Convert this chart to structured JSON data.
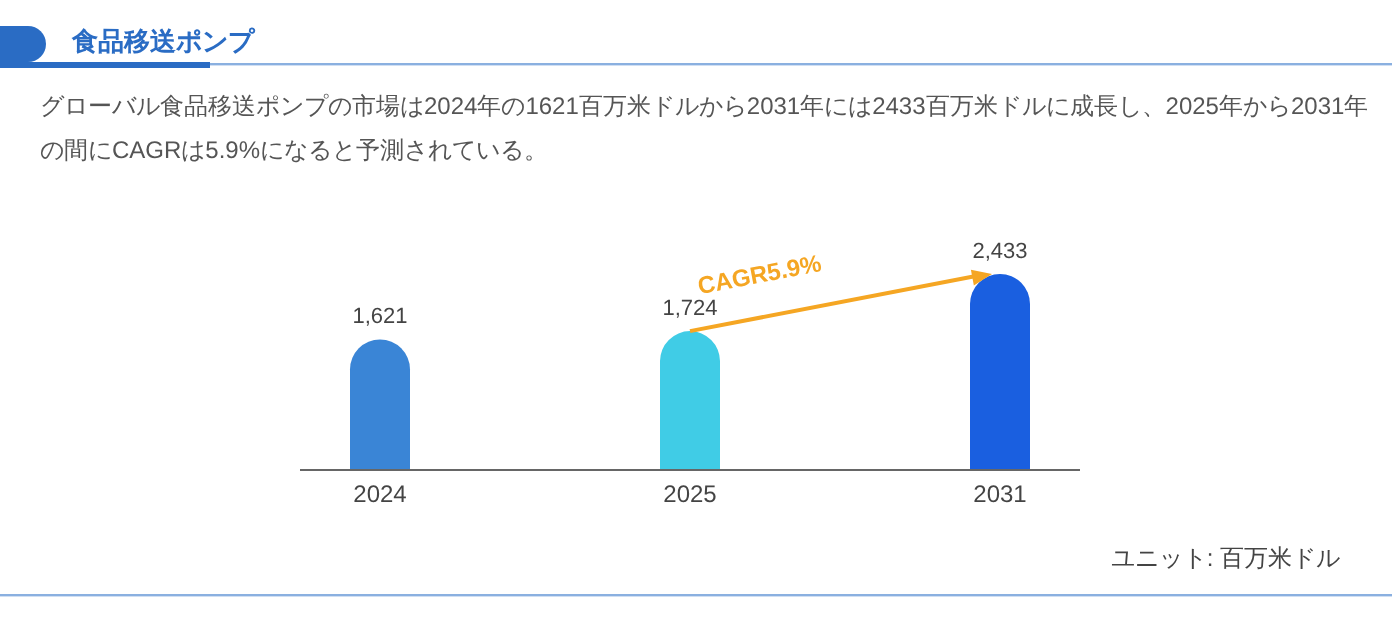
{
  "chart_data": {
    "type": "bar",
    "title": "食品移送ポンプ",
    "subtitle": "グローバル食品移送ポンプの市場は2024年の1621百万米ドルから2031年には2433百万米ドルに成長し、2025年から2031年の間にCAGRは5.9%になると予測されている。",
    "categories": [
      "2024",
      "2025",
      "2031"
    ],
    "values": [
      1621,
      1724,
      2433
    ],
    "value_labels": [
      "1,621",
      "1,724",
      "2,433"
    ],
    "colors": [
      "#3a85d6",
      "#40cce6",
      "#1a5fe0"
    ],
    "annotations": [
      "CAGR5.9%",
      "ユニット: 百万米ドル"
    ]
  }
}
